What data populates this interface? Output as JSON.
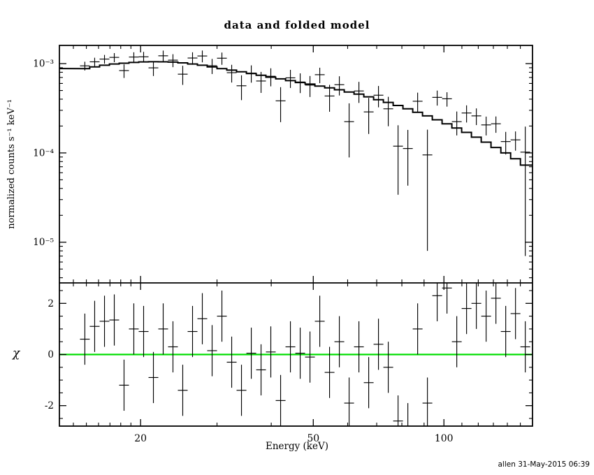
{
  "page": {
    "title": "data and folded model",
    "footer": "allen 31-May-2015 06:39"
  },
  "axes": {
    "xlabel": "Energy (keV)",
    "ylabel_top": "normalized counts s⁻¹ keV⁻¹",
    "ylabel_bottom": "χ"
  },
  "chart_data": [
    {
      "panel": "spectrum",
      "type": "scatter",
      "title": "data and folded model",
      "xlabel": "Energy (keV)",
      "ylabel": "normalized counts s⁻¹ keV⁻¹",
      "xscale": "log",
      "yscale": "log",
      "xlim": [
        13.0,
        160.0
      ],
      "ylim": [
        3.5e-06,
        0.0016
      ],
      "x_major_ticks": [
        20,
        50,
        100
      ],
      "x_major_labels": [
        "20",
        "50",
        "100"
      ],
      "x_minor_ticks": [
        14,
        15,
        16,
        17,
        18,
        19,
        30,
        40,
        60,
        70,
        80,
        90,
        110,
        120,
        130,
        140,
        150
      ],
      "y_major_ticks": [
        0.001,
        0.0001,
        1e-05
      ],
      "y_major_labels": [
        "10⁻³",
        "10⁻⁴",
        "10⁻⁵"
      ],
      "legend": "off",
      "grid": "off",
      "colors": {
        "data": "#000000",
        "model": "#000000"
      },
      "bin_edges_keV": [
        14.5,
        15.27,
        16.09,
        16.95,
        17.85,
        18.8,
        19.8,
        20.86,
        21.97,
        23.14,
        24.37,
        25.67,
        27.04,
        28.48,
        30.0,
        31.6,
        33.28,
        35.06,
        36.93,
        38.89,
        40.96,
        43.15,
        45.45,
        47.87,
        50.42,
        53.11,
        55.94,
        58.92,
        62.06,
        65.37,
        68.85,
        72.52,
        76.39,
        80.46,
        84.75,
        89.27,
        94.02,
        99.03,
        104.31,
        109.87,
        115.73,
        121.9,
        128.39,
        135.24,
        142.45,
        150.04,
        158.04
      ],
      "model": [
        0.00088,
        0.00092,
        0.00096,
        0.00099,
        0.00101,
        0.00103,
        0.001045,
        0.00105,
        0.001048,
        0.00104,
        0.00102,
        0.00099,
        0.00096,
        0.00092,
        0.00088,
        0.000845,
        0.00081,
        0.000775,
        0.00074,
        0.000705,
        0.000675,
        0.000645,
        0.000615,
        0.00059,
        0.00056,
        0.000535,
        0.00051,
        0.00048,
        0.000455,
        0.000425,
        0.000395,
        0.000368,
        0.00034,
        0.000312,
        0.000285,
        0.00026,
        0.000235,
        0.000212,
        0.00019,
        0.00017,
        0.00015,
        0.000132,
        0.000115,
        0.0001,
        8.6e-05,
        7.3e-05
      ],
      "data_y": [
        0.000944,
        0.001048,
        0.001125,
        0.001175,
        0.000836,
        0.001185,
        0.001192,
        0.000897,
        0.001224,
        0.001094,
        0.000762,
        0.001156,
        0.001218,
        0.000947,
        0.00115,
        0.000792,
        0.000565,
        0.000784,
        0.000639,
        0.000722,
        0.000383,
        0.000693,
        0.000623,
        0.000575,
        0.000752,
        0.000434,
        0.000581,
        0.000224,
        0.000494,
        0.000288,
        0.000443,
        0.000312,
        0.000119,
        0.000112,
        0.000379,
        9.5e-05,
        0.000419,
        0.000404,
        0.000224,
        0.00028,
        0.00026,
        0.000206,
        0.000212,
        0.000134,
        0.00014,
        0.000102
      ],
      "data_yerr": [
        0.000106,
        0.000116,
        0.000127,
        0.000137,
        0.000145,
        0.000155,
        0.000163,
        0.00017,
        0.000176,
        0.000181,
        0.000184,
        0.000184,
        0.000184,
        0.000182,
        0.00018,
        0.000178,
        0.000175,
        0.000172,
        0.000169,
        0.000165,
        0.000162,
        0.000159,
        0.000155,
        0.000152,
        0.000148,
        0.000145,
        0.000141,
        0.000135,
        0.000131,
        0.000125,
        0.000119,
        0.000113,
        8.5e-05,
        6.9e-05,
        9.4e-05,
        8.7e-05,
        8e-05,
        7.4e-05,
        6.7e-05,
        6.1e-05,
        5.5e-05,
        4.9e-05,
        4.4e-05,
        3.8e-05,
        3.4e-05,
        9.5e-05
      ]
    },
    {
      "panel": "residuals",
      "type": "scatter",
      "ylabel": "χ",
      "yscale": "linear",
      "ylim": [
        -2.8,
        2.8
      ],
      "y_major_ticks": [
        -2,
        0,
        2
      ],
      "y_major_labels": [
        "-2",
        "0",
        "2"
      ],
      "y_minor_ticks": [
        -2.5,
        -1.5,
        -1,
        -0.5,
        0.5,
        1,
        1.5,
        2.5
      ],
      "chi": [
        0.6,
        1.1,
        1.3,
        1.35,
        -1.2,
        1.0,
        0.9,
        -0.9,
        1.0,
        0.3,
        -1.4,
        0.9,
        1.4,
        0.15,
        1.5,
        -0.3,
        -1.4,
        0.05,
        -0.6,
        0.1,
        -1.8,
        0.3,
        0.05,
        -0.1,
        1.3,
        -0.7,
        0.5,
        -1.9,
        0.3,
        -1.1,
        0.4,
        -0.5,
        -2.6,
        -2.9,
        1.0,
        -1.9,
        2.3,
        2.6,
        0.5,
        1.8,
        2.0,
        1.5,
        2.2,
        0.9,
        1.6,
        0.3
      ],
      "chi_err": 1,
      "zero_line": {
        "y": 0,
        "color": "#00dd00"
      }
    }
  ]
}
